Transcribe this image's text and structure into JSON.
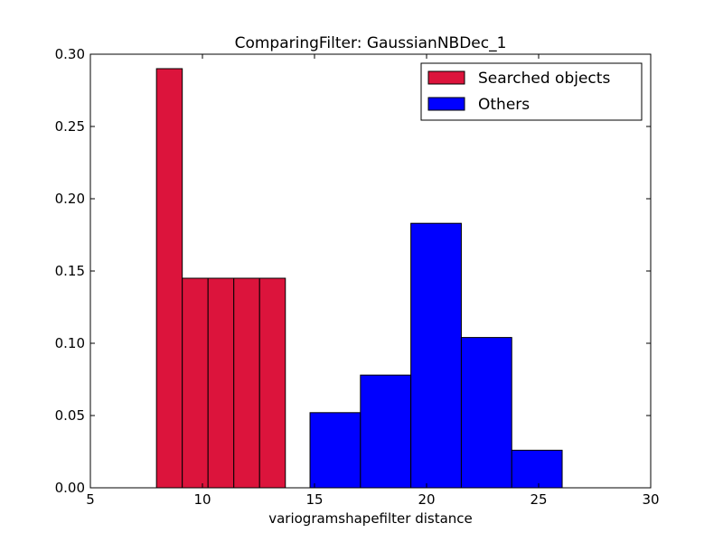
{
  "chart_data": {
    "type": "bar",
    "title": "ComparingFilter: GaussianNBDec_1",
    "xlabel": "variogramshapefilter distance",
    "ylabel": "",
    "xlim": [
      5,
      30
    ],
    "ylim": [
      0,
      0.3
    ],
    "xticks": [
      "5",
      "10",
      "15",
      "20",
      "25",
      "30"
    ],
    "yticks": [
      "0.00",
      "0.05",
      "0.10",
      "0.15",
      "0.20",
      "0.25",
      "0.30"
    ],
    "grid": false,
    "legend_position": "top-right",
    "series": [
      {
        "name": "Searched objects",
        "color": "#dc143c",
        "bins": [
          {
            "x0": 7.95,
            "x1": 9.1,
            "value": 0.29
          },
          {
            "x0": 9.1,
            "x1": 10.25,
            "value": 0.145
          },
          {
            "x0": 10.25,
            "x1": 11.4,
            "value": 0.145
          },
          {
            "x0": 11.4,
            "x1": 12.55,
            "value": 0.145
          },
          {
            "x0": 12.55,
            "x1": 13.7,
            "value": 0.145
          }
        ]
      },
      {
        "name": "Others",
        "color": "#0000ff",
        "bins": [
          {
            "x0": 14.8,
            "x1": 17.05,
            "value": 0.052
          },
          {
            "x0": 17.05,
            "x1": 19.3,
            "value": 0.078
          },
          {
            "x0": 19.3,
            "x1": 21.55,
            "value": 0.183
          },
          {
            "x0": 21.55,
            "x1": 23.8,
            "value": 0.104
          },
          {
            "x0": 23.8,
            "x1": 26.05,
            "value": 0.026
          }
        ]
      }
    ]
  }
}
